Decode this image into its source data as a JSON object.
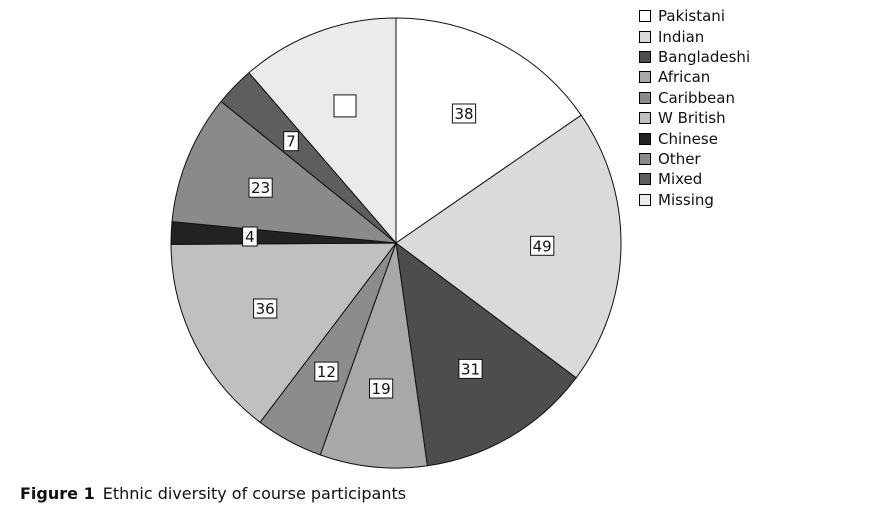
{
  "chart_data": {
    "type": "pie",
    "start_angle_deg": 0,
    "direction": "clockwise",
    "legend_position": "top-right",
    "slices": [
      {
        "label": "Pakistani",
        "value": 38,
        "value_label": "38",
        "color": "#ffffff"
      },
      {
        "label": "Indian",
        "value": 49,
        "value_label": "49",
        "color": "#dadada"
      },
      {
        "label": "Bangladeshi",
        "value": 31,
        "value_label": "31",
        "color": "#4d4d4d"
      },
      {
        "label": "African",
        "value": 19,
        "value_label": "19",
        "color": "#a8a8a8"
      },
      {
        "label": "Caribbean",
        "value": 12,
        "value_label": "12",
        "color": "#8c8c8c"
      },
      {
        "label": "W British",
        "value": 36,
        "value_label": "36",
        "color": "#c0c0c0"
      },
      {
        "label": "Chinese",
        "value": 4,
        "value_label": "4",
        "color": "#222222"
      },
      {
        "label": "Other",
        "value": 23,
        "value_label": "23",
        "color": "#8a8a8a"
      },
      {
        "label": "Mixed",
        "value": 7,
        "value_label": "7",
        "color": "#5e5e5e"
      },
      {
        "label": "Missing",
        "value": 28,
        "value_label": "",
        "color": "#ebebeb"
      }
    ]
  },
  "caption": {
    "label": "Figure 1",
    "text": "Ethnic diversity of course participants"
  }
}
